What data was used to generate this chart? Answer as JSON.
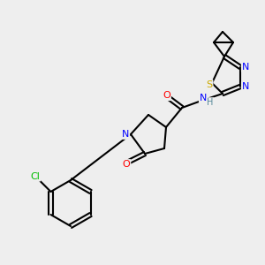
{
  "background_color": "#eeeeee",
  "atom_colors": {
    "C": "#000000",
    "N": "#0000ff",
    "O": "#ff0000",
    "S": "#ccaa00",
    "Cl": "#00bb00",
    "H": "#558899"
  },
  "figsize": [
    3.0,
    3.0
  ],
  "dpi": 100,
  "lw": 1.5,
  "fontsize": 8
}
